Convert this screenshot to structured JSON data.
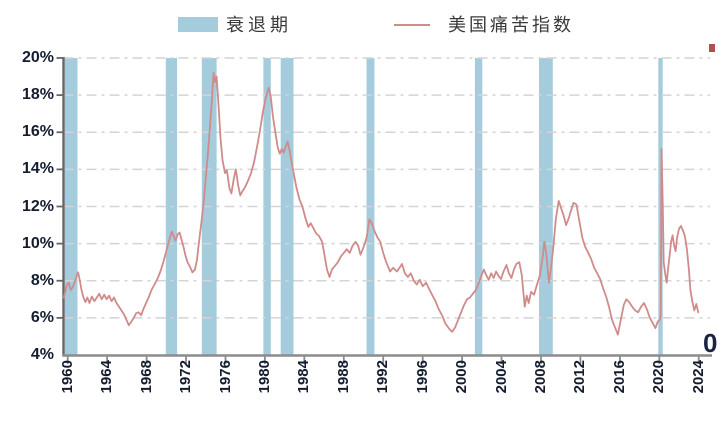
{
  "legend": {
    "recession_label": "衰退期",
    "series_label": "美国痛苦指数"
  },
  "colors": {
    "recession_band": "#A4CCDD",
    "misery_line": "#D08B8B",
    "grid": "#D4D4D4",
    "axis": "#8C8C8C",
    "y_axis": "#666666",
    "tick_label": "#141C30",
    "legend_text": "#3A3A3A",
    "clipped_mark": "#B0514C"
  },
  "y_axis": {
    "tick_labels": [
      "20%",
      "18%",
      "16%",
      "14%",
      "12%",
      "10%",
      "8%",
      "6%",
      "4%"
    ],
    "tick_values": [
      20,
      18,
      16,
      14,
      12,
      10,
      8,
      6,
      4
    ],
    "min": 4,
    "max": 20,
    "unit": "%"
  },
  "x_axis": {
    "tick_labels": [
      "1960",
      "1964",
      "1968",
      "1972",
      "1976",
      "1980",
      "1984",
      "1988",
      "1992",
      "1996",
      "2000",
      "2004",
      "2008",
      "2012",
      "2016",
      "2020",
      "2024"
    ],
    "tick_values": [
      1960,
      1964,
      1968,
      1972,
      1976,
      1980,
      1984,
      1988,
      1992,
      1996,
      2000,
      2004,
      2008,
      2012,
      2016,
      2020,
      2024
    ]
  },
  "decorations": {
    "clipped_right_axis_digit": "0"
  },
  "chart_data": {
    "type": "line",
    "title": "",
    "legend_position": "top",
    "grid": "dashed-horizontal",
    "xlabel": "",
    "ylabel": "",
    "ylim": [
      4,
      20
    ],
    "xlim": [
      1959.55,
      2025.2
    ],
    "y_ticks": [
      4,
      6,
      8,
      10,
      12,
      14,
      16,
      18,
      20
    ],
    "x_ticks": [
      1960,
      1964,
      1968,
      1972,
      1976,
      1980,
      1984,
      1988,
      1992,
      1996,
      2000,
      2004,
      2008,
      2012,
      2016,
      2020,
      2024
    ],
    "recession_bands": [
      [
        1959.7,
        1961.0
      ],
      [
        1969.95,
        1971.1
      ],
      [
        1973.6,
        1975.1
      ],
      [
        1979.85,
        1980.6
      ],
      [
        1981.6,
        1982.9
      ],
      [
        1990.3,
        1991.1
      ],
      [
        2001.3,
        2002.05
      ],
      [
        2007.8,
        2009.2
      ],
      [
        2019.9,
        2020.35
      ]
    ],
    "series": [
      {
        "name": "美国痛苦指数",
        "unit": "percent",
        "points": [
          [
            1959.6,
            7.1
          ],
          [
            1959.75,
            7.4
          ],
          [
            1959.9,
            7.75
          ],
          [
            1960.1,
            7.9
          ],
          [
            1960.3,
            7.5
          ],
          [
            1960.5,
            7.65
          ],
          [
            1960.7,
            7.9
          ],
          [
            1960.9,
            8.25
          ],
          [
            1961.05,
            8.45
          ],
          [
            1961.2,
            8.1
          ],
          [
            1961.4,
            7.5
          ],
          [
            1961.6,
            7.1
          ],
          [
            1961.8,
            6.85
          ],
          [
            1962.0,
            7.1
          ],
          [
            1962.2,
            6.8
          ],
          [
            1962.45,
            7.15
          ],
          [
            1962.7,
            6.9
          ],
          [
            1962.95,
            7.1
          ],
          [
            1963.2,
            7.3
          ],
          [
            1963.45,
            7.0
          ],
          [
            1963.7,
            7.25
          ],
          [
            1963.95,
            7.0
          ],
          [
            1964.2,
            7.2
          ],
          [
            1964.45,
            6.9
          ],
          [
            1964.7,
            7.1
          ],
          [
            1964.95,
            6.8
          ],
          [
            1965.2,
            6.6
          ],
          [
            1965.45,
            6.4
          ],
          [
            1965.7,
            6.2
          ],
          [
            1965.95,
            5.9
          ],
          [
            1966.2,
            5.6
          ],
          [
            1966.45,
            5.8
          ],
          [
            1966.7,
            6.0
          ],
          [
            1966.95,
            6.25
          ],
          [
            1967.2,
            6.3
          ],
          [
            1967.45,
            6.15
          ],
          [
            1967.7,
            6.5
          ],
          [
            1967.95,
            6.8
          ],
          [
            1968.2,
            7.1
          ],
          [
            1968.5,
            7.5
          ],
          [
            1968.8,
            7.8
          ],
          [
            1969.1,
            8.1
          ],
          [
            1969.4,
            8.5
          ],
          [
            1969.7,
            9.0
          ],
          [
            1970.0,
            9.6
          ],
          [
            1970.3,
            10.2
          ],
          [
            1970.55,
            10.65
          ],
          [
            1970.75,
            10.4
          ],
          [
            1970.95,
            10.15
          ],
          [
            1971.15,
            10.5
          ],
          [
            1971.35,
            10.6
          ],
          [
            1971.55,
            10.2
          ],
          [
            1971.75,
            9.8
          ],
          [
            1971.95,
            9.35
          ],
          [
            1972.15,
            9.0
          ],
          [
            1972.4,
            8.75
          ],
          [
            1972.65,
            8.45
          ],
          [
            1972.9,
            8.6
          ],
          [
            1973.1,
            9.1
          ],
          [
            1973.3,
            10.0
          ],
          [
            1973.55,
            11.1
          ],
          [
            1973.8,
            12.3
          ],
          [
            1974.0,
            13.5
          ],
          [
            1974.2,
            14.7
          ],
          [
            1974.4,
            16.1
          ],
          [
            1974.6,
            17.6
          ],
          [
            1974.8,
            19.2
          ],
          [
            1974.95,
            18.7
          ],
          [
            1975.1,
            19.0
          ],
          [
            1975.3,
            17.4
          ],
          [
            1975.5,
            15.7
          ],
          [
            1975.7,
            14.5
          ],
          [
            1975.95,
            13.8
          ],
          [
            1976.15,
            13.95
          ],
          [
            1976.4,
            13.0
          ],
          [
            1976.6,
            12.7
          ],
          [
            1976.85,
            13.5
          ],
          [
            1977.05,
            14.0
          ],
          [
            1977.3,
            13.1
          ],
          [
            1977.5,
            12.6
          ],
          [
            1977.75,
            12.85
          ],
          [
            1978.0,
            13.05
          ],
          [
            1978.3,
            13.4
          ],
          [
            1978.6,
            13.8
          ],
          [
            1978.9,
            14.4
          ],
          [
            1979.2,
            15.2
          ],
          [
            1979.5,
            16.1
          ],
          [
            1979.8,
            17.1
          ],
          [
            1980.1,
            17.9
          ],
          [
            1980.4,
            18.4
          ],
          [
            1980.6,
            17.9
          ],
          [
            1980.8,
            16.9
          ],
          [
            1981.05,
            16.0
          ],
          [
            1981.3,
            15.2
          ],
          [
            1981.5,
            14.85
          ],
          [
            1981.7,
            15.1
          ],
          [
            1981.9,
            14.9
          ],
          [
            1982.1,
            15.2
          ],
          [
            1982.3,
            15.5
          ],
          [
            1982.5,
            15.0
          ],
          [
            1982.7,
            14.4
          ],
          [
            1982.95,
            13.7
          ],
          [
            1983.2,
            13.0
          ],
          [
            1983.5,
            12.4
          ],
          [
            1983.8,
            12.0
          ],
          [
            1984.1,
            11.4
          ],
          [
            1984.4,
            10.9
          ],
          [
            1984.65,
            11.1
          ],
          [
            1984.9,
            10.85
          ],
          [
            1985.2,
            10.55
          ],
          [
            1985.5,
            10.4
          ],
          [
            1985.8,
            10.1
          ],
          [
            1986.0,
            9.5
          ],
          [
            1986.3,
            8.6
          ],
          [
            1986.55,
            8.2
          ],
          [
            1986.8,
            8.6
          ],
          [
            1987.1,
            8.8
          ],
          [
            1987.4,
            9.0
          ],
          [
            1987.7,
            9.3
          ],
          [
            1988.0,
            9.5
          ],
          [
            1988.3,
            9.7
          ],
          [
            1988.6,
            9.5
          ],
          [
            1988.9,
            9.9
          ],
          [
            1989.2,
            10.1
          ],
          [
            1989.45,
            9.9
          ],
          [
            1989.7,
            9.4
          ],
          [
            1990.0,
            9.8
          ],
          [
            1990.3,
            10.3
          ],
          [
            1990.6,
            11.3
          ],
          [
            1990.85,
            11.1
          ],
          [
            1991.1,
            10.7
          ],
          [
            1991.4,
            10.35
          ],
          [
            1991.7,
            10.1
          ],
          [
            1992.0,
            9.5
          ],
          [
            1992.3,
            9.0
          ],
          [
            1992.7,
            8.5
          ],
          [
            1993.0,
            8.7
          ],
          [
            1993.4,
            8.5
          ],
          [
            1993.9,
            8.9
          ],
          [
            1994.2,
            8.4
          ],
          [
            1994.5,
            8.2
          ],
          [
            1994.8,
            8.4
          ],
          [
            1995.1,
            8.0
          ],
          [
            1995.4,
            7.8
          ],
          [
            1995.7,
            8.05
          ],
          [
            1996.0,
            7.7
          ],
          [
            1996.35,
            7.9
          ],
          [
            1996.7,
            7.5
          ],
          [
            1997.0,
            7.2
          ],
          [
            1997.3,
            6.9
          ],
          [
            1997.6,
            6.5
          ],
          [
            1998.0,
            6.1
          ],
          [
            1998.3,
            5.7
          ],
          [
            1998.7,
            5.4
          ],
          [
            1999.0,
            5.25
          ],
          [
            1999.3,
            5.5
          ],
          [
            1999.6,
            5.9
          ],
          [
            1999.9,
            6.3
          ],
          [
            2000.2,
            6.7
          ],
          [
            2000.5,
            7.0
          ],
          [
            2000.8,
            7.1
          ],
          [
            2001.1,
            7.3
          ],
          [
            2001.4,
            7.5
          ],
          [
            2001.7,
            7.9
          ],
          [
            2001.95,
            8.25
          ],
          [
            2002.2,
            8.6
          ],
          [
            2002.45,
            8.3
          ],
          [
            2002.7,
            8.05
          ],
          [
            2002.95,
            8.4
          ],
          [
            2003.2,
            8.15
          ],
          [
            2003.45,
            8.5
          ],
          [
            2003.7,
            8.25
          ],
          [
            2003.95,
            8.1
          ],
          [
            2004.2,
            8.5
          ],
          [
            2004.5,
            8.85
          ],
          [
            2004.75,
            8.4
          ],
          [
            2005.0,
            8.15
          ],
          [
            2005.25,
            8.6
          ],
          [
            2005.5,
            8.9
          ],
          [
            2005.8,
            9.0
          ],
          [
            2006.05,
            8.3
          ],
          [
            2006.35,
            6.6
          ],
          [
            2006.55,
            7.2
          ],
          [
            2006.75,
            6.8
          ],
          [
            2007.0,
            7.4
          ],
          [
            2007.3,
            7.25
          ],
          [
            2007.6,
            7.8
          ],
          [
            2007.9,
            8.3
          ],
          [
            2008.15,
            9.2
          ],
          [
            2008.35,
            10.1
          ],
          [
            2008.55,
            9.4
          ],
          [
            2008.8,
            7.9
          ],
          [
            2009.0,
            8.6
          ],
          [
            2009.25,
            9.8
          ],
          [
            2009.5,
            11.3
          ],
          [
            2009.8,
            12.3
          ],
          [
            2010.05,
            11.9
          ],
          [
            2010.3,
            11.5
          ],
          [
            2010.55,
            11.0
          ],
          [
            2010.8,
            11.35
          ],
          [
            2011.05,
            11.8
          ],
          [
            2011.3,
            12.2
          ],
          [
            2011.6,
            12.1
          ],
          [
            2011.9,
            11.2
          ],
          [
            2012.2,
            10.3
          ],
          [
            2012.5,
            9.8
          ],
          [
            2012.8,
            9.5
          ],
          [
            2013.1,
            9.15
          ],
          [
            2013.4,
            8.7
          ],
          [
            2013.7,
            8.4
          ],
          [
            2014.0,
            8.1
          ],
          [
            2014.3,
            7.6
          ],
          [
            2014.6,
            7.15
          ],
          [
            2014.9,
            6.6
          ],
          [
            2015.2,
            5.9
          ],
          [
            2015.5,
            5.5
          ],
          [
            2015.8,
            5.1
          ],
          [
            2016.1,
            5.9
          ],
          [
            2016.4,
            6.7
          ],
          [
            2016.65,
            7.0
          ],
          [
            2016.95,
            6.85
          ],
          [
            2017.25,
            6.6
          ],
          [
            2017.55,
            6.4
          ],
          [
            2017.85,
            6.3
          ],
          [
            2018.15,
            6.6
          ],
          [
            2018.45,
            6.8
          ],
          [
            2018.75,
            6.45
          ],
          [
            2019.05,
            6.0
          ],
          [
            2019.35,
            5.7
          ],
          [
            2019.6,
            5.45
          ],
          [
            2019.85,
            5.8
          ],
          [
            2020.05,
            5.9
          ],
          [
            2020.14,
            6.1
          ],
          [
            2020.22,
            15.1
          ],
          [
            2020.34,
            12.3
          ],
          [
            2020.45,
            9.0
          ],
          [
            2020.62,
            8.3
          ],
          [
            2020.75,
            7.9
          ],
          [
            2020.9,
            8.7
          ],
          [
            2021.05,
            9.4
          ],
          [
            2021.2,
            10.1
          ],
          [
            2021.35,
            10.45
          ],
          [
            2021.5,
            9.9
          ],
          [
            2021.65,
            9.6
          ],
          [
            2021.8,
            10.3
          ],
          [
            2022.0,
            10.8
          ],
          [
            2022.2,
            10.95
          ],
          [
            2022.4,
            10.7
          ],
          [
            2022.6,
            10.4
          ],
          [
            2022.8,
            9.7
          ],
          [
            2023.0,
            8.6
          ],
          [
            2023.15,
            7.5
          ],
          [
            2023.35,
            6.9
          ],
          [
            2023.55,
            6.4
          ],
          [
            2023.75,
            6.75
          ],
          [
            2023.95,
            6.3
          ]
        ]
      }
    ]
  }
}
